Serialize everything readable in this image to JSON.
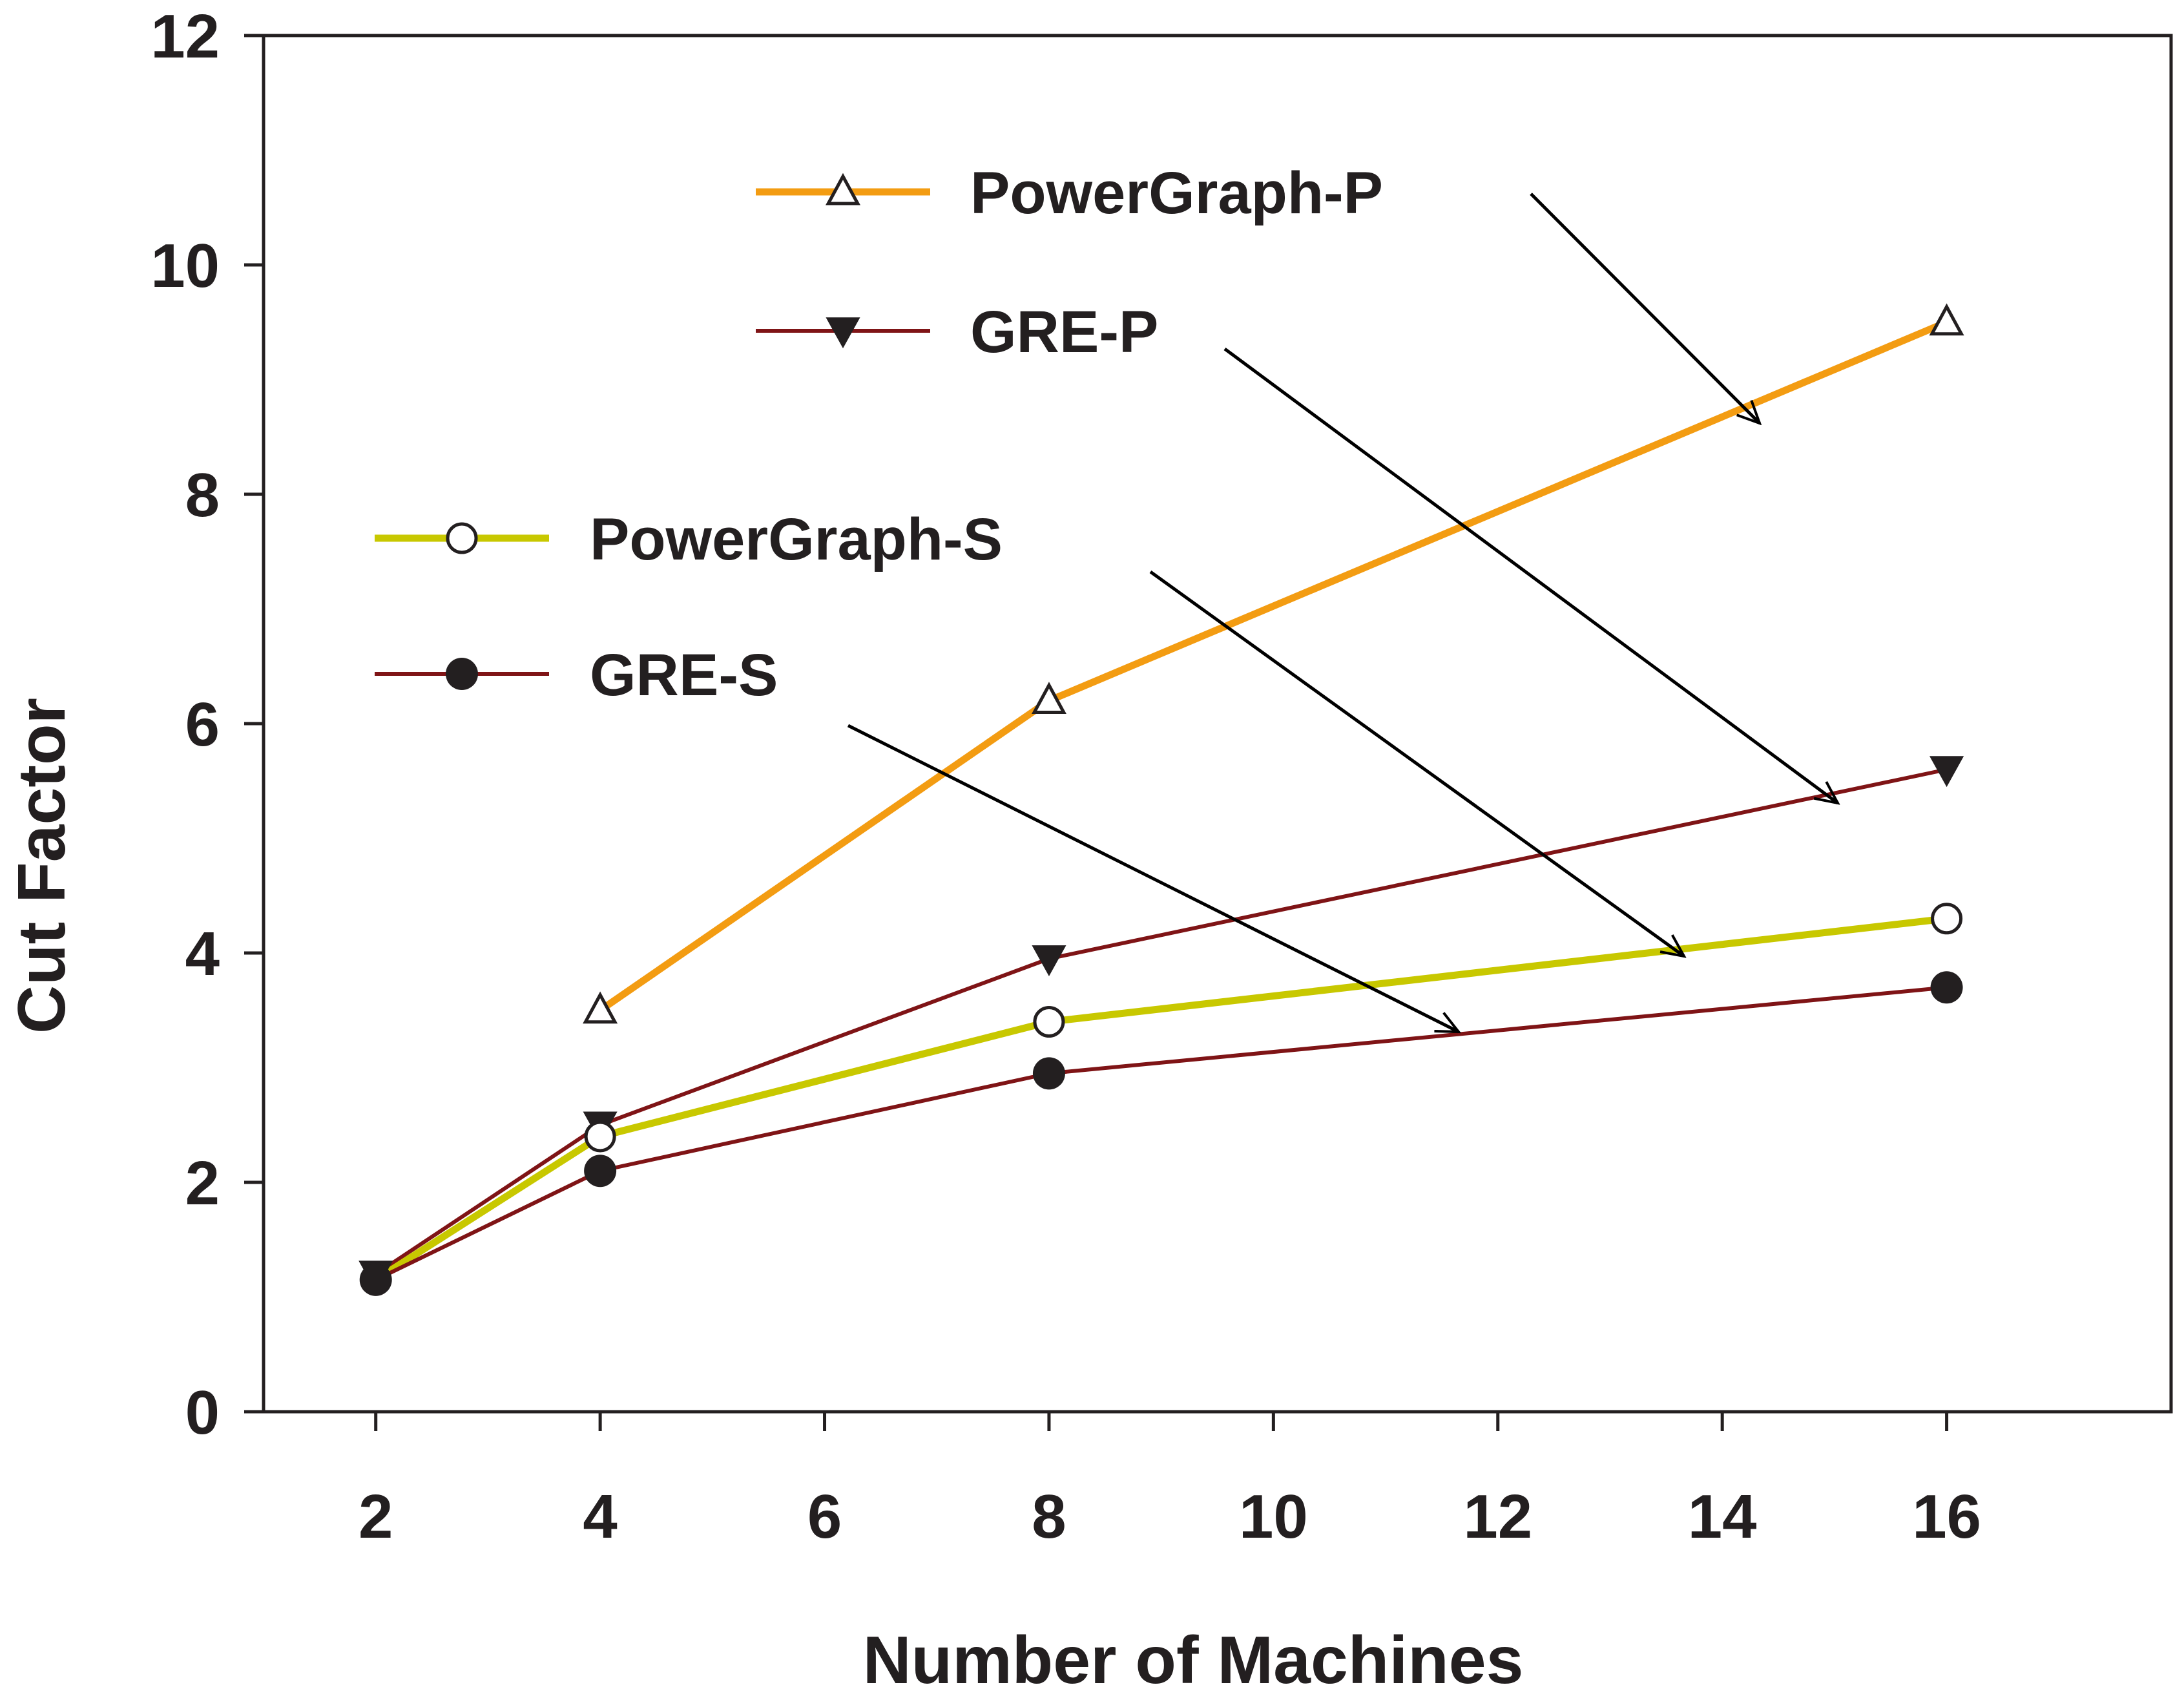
{
  "chart_data": {
    "type": "line",
    "xlabel": "Number of Machines",
    "ylabel": "Cut Factor",
    "xlim": [
      1,
      18
    ],
    "ylim": [
      0,
      12
    ],
    "xticks": [
      2,
      4,
      6,
      8,
      10,
      12,
      14,
      16
    ],
    "yticks": [
      0,
      2,
      4,
      6,
      8,
      10,
      12
    ],
    "grid": false,
    "series": [
      {
        "name": "PowerGraph-P",
        "marker": "triangle-open",
        "color": "#f39c12",
        "x": [
          4,
          8,
          16
        ],
        "y": [
          3.5,
          6.2,
          9.5
        ]
      },
      {
        "name": "GRE-P",
        "marker": "triangle-down-filled",
        "color": "#7f1416",
        "x": [
          2,
          4,
          8,
          16
        ],
        "y": [
          1.2,
          2.5,
          3.95,
          5.6
        ]
      },
      {
        "name": "PowerGraph-S",
        "marker": "circle-open",
        "color": "#c8c800",
        "x": [
          2,
          4,
          8,
          16
        ],
        "y": [
          1.15,
          2.4,
          3.4,
          4.3
        ]
      },
      {
        "name": "GRE-S",
        "marker": "circle-filled",
        "color": "#7f1416",
        "x": [
          2,
          4,
          8,
          16
        ],
        "y": [
          1.15,
          2.1,
          2.95,
          3.7
        ]
      }
    ],
    "legend": {
      "placement": "inside-upper-left",
      "style": "callout-arrows"
    }
  }
}
